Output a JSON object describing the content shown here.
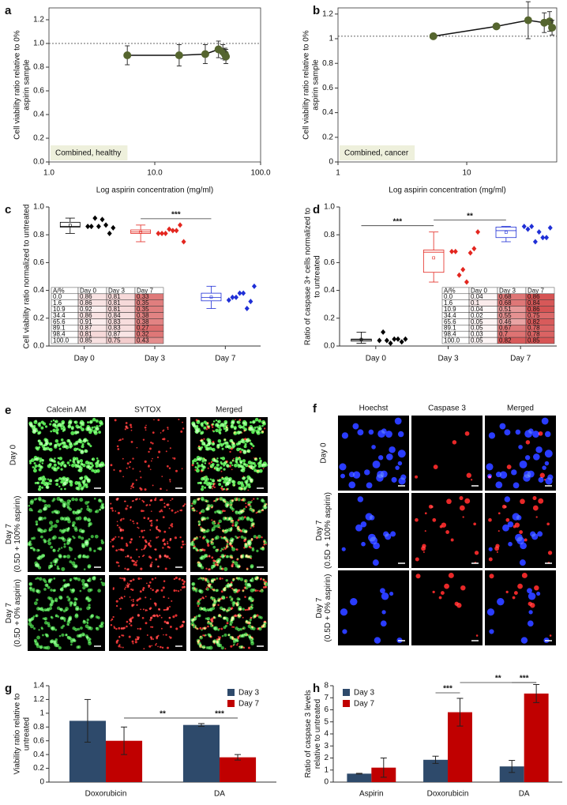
{
  "chart_data": [
    {
      "panel": "a",
      "type": "scatter",
      "xscale": "log",
      "frame": true,
      "x": [
        5.5,
        17,
        30,
        40,
        44,
        46,
        47
      ],
      "values": [
        0.9,
        0.9,
        0.91,
        0.95,
        0.93,
        0.91,
        0.89
      ],
      "errors": [
        0.08,
        0.09,
        0.08,
        0.07,
        0.06,
        0.05,
        0.06
      ],
      "color": "#55652e",
      "fit": true,
      "reference": 1,
      "xlim": [
        1,
        100
      ],
      "xticks": [
        {
          "value": 1,
          "label": "1.0"
        },
        {
          "value": 10,
          "label": "10.0"
        },
        {
          "value": 100,
          "label": "100.0"
        }
      ],
      "ylim": [
        0,
        1.3
      ],
      "yticks": [
        {
          "value": 0,
          "label": "0.0"
        },
        0.2,
        0.4,
        0.6,
        0.8,
        {
          "value": 1,
          "label": "1.0"
        },
        1.2
      ],
      "xlabel": "Log aspirin concentration (mg/ml)",
      "ylabel": [
        "Cell viability ratio relative to 0%",
        "aspirin sample"
      ],
      "annotation": "Combined, healthy"
    },
    {
      "panel": "b",
      "type": "scatter",
      "xscale": "log",
      "frame": true,
      "x": [
        5.5,
        17,
        30,
        40,
        44,
        46
      ],
      "values": [
        1.02,
        1.1,
        1.15,
        1.13,
        1.14,
        1.09
      ],
      "errors": [
        0.01,
        0.02,
        0.15,
        0.08,
        0.08,
        0.06
      ],
      "color": "#55652e",
      "fit": true,
      "reference": 1.02,
      "xlim": [
        1,
        50
      ],
      "xticks": [
        1,
        10
      ],
      "ylim": [
        0,
        1.25
      ],
      "yticks": [
        0,
        0.2,
        0.4,
        0.6,
        0.8,
        1,
        1.2
      ],
      "xlabel": "Log aspirin concentration (mg/ml)",
      "ylabel": [
        "Cell viability ratio relative to 0%",
        "aspirin sample"
      ],
      "annotation": "Combined, cancer"
    },
    {
      "panel": "c",
      "type": "box",
      "categories": [
        "Day 0",
        "Day 3",
        "Day 7"
      ],
      "colors": [
        "#000000",
        "#e3261f",
        "#1f2fd6"
      ],
      "boxes": [
        {
          "min": 0.81,
          "q1": 0.855,
          "median": 0.86,
          "q3": 0.89,
          "max": 0.92,
          "mean": 0.868
        },
        {
          "min": 0.75,
          "q1": 0.81,
          "median": 0.82,
          "q3": 0.835,
          "max": 0.87,
          "mean": 0.819
        },
        {
          "min": 0.27,
          "q1": 0.325,
          "median": 0.35,
          "q3": 0.38,
          "max": 0.43,
          "mean": 0.351
        }
      ],
      "points": [
        [
          0.86,
          0.86,
          0.92,
          0.86,
          0.91,
          0.87,
          0.81,
          0.85
        ],
        [
          0.81,
          0.81,
          0.81,
          0.84,
          0.83,
          0.83,
          0.87,
          0.75
        ],
        [
          0.33,
          0.35,
          0.35,
          0.38,
          0.38,
          0.27,
          0.32,
          0.43
        ]
      ],
      "ylim": [
        0,
        1
      ],
      "yticks": [
        {
          "value": 0,
          "label": "0.0"
        },
        0.2,
        0.4,
        0.6,
        0.8,
        {
          "value": 1,
          "label": "1.0"
        }
      ],
      "ylabel": [
        "Cell viability ratio normalized to untreated"
      ],
      "annotations": [
        {
          "text": "***",
          "from": 1,
          "to": 2
        }
      ],
      "table_corner": "bottom-left",
      "shade": "low",
      "table": {
        "header": [
          "A/%",
          "Day 0",
          "Day 3",
          "Day 7"
        ],
        "rows": [
          [
            "0.0",
            "0.86",
            "0.81",
            "0.33"
          ],
          [
            "1.6",
            "0.86",
            "0.81",
            "0.35"
          ],
          [
            "10.9",
            "0.92",
            "0.81",
            "0.35"
          ],
          [
            "34.4",
            "0.86",
            "0.84",
            "0.38"
          ],
          [
            "65.6",
            "0.91",
            "0.83",
            "0.38"
          ],
          [
            "89.1",
            "0.87",
            "0.83",
            "0.27"
          ],
          [
            "98.4",
            "0.81",
            "0.87",
            "0.32"
          ],
          [
            "100.0",
            "0.85",
            "0.75",
            "0.43"
          ]
        ]
      }
    },
    {
      "panel": "d",
      "type": "box",
      "categories": [
        "Day 0",
        "Day 3",
        "Day 7"
      ],
      "colors": [
        "#000000",
        "#e3261f",
        "#1f2fd6"
      ],
      "boxes": [
        {
          "min": 0.02,
          "q1": 0.035,
          "median": 0.045,
          "q3": 0.05,
          "max": 0.1,
          "mean": 0.048
        },
        {
          "min": 0.46,
          "q1": 0.53,
          "median": 0.675,
          "q3": 0.69,
          "max": 0.82,
          "mean": 0.634
        },
        {
          "min": 0.75,
          "q1": 0.78,
          "median": 0.83,
          "q3": 0.855,
          "max": 0.86,
          "mean": 0.818
        }
      ],
      "points": [
        [
          0.04,
          0.1,
          0.04,
          0.02,
          0.05,
          0.05,
          0.03,
          0.05
        ],
        [
          0.68,
          0.68,
          0.51,
          0.55,
          0.46,
          0.67,
          0.7,
          0.82
        ],
        [
          0.86,
          0.84,
          0.86,
          0.75,
          0.82,
          0.78,
          0.78,
          0.85
        ]
      ],
      "ylim": [
        0,
        1
      ],
      "yticks": [
        {
          "value": 0,
          "label": "0.0"
        },
        0.2,
        0.4,
        0.6,
        0.8,
        {
          "value": 1,
          "label": "1.0"
        }
      ],
      "ylabel": [
        "Ratio of caspase 3+ cells normalized to",
        "to untreated"
      ],
      "annotations": [
        {
          "text": "***",
          "from": 0,
          "to": 1
        },
        {
          "text": "**",
          "from": 1,
          "to": 2
        }
      ],
      "table_corner": "bottom-right",
      "shade": "high",
      "table": {
        "header": [
          "A/%",
          "Day 0",
          "Day 3",
          "Day 7"
        ],
        "rows": [
          [
            "0.0",
            "0.04",
            "0.68",
            "0.86"
          ],
          [
            "1.6",
            "0.1",
            "0.68",
            "0.84"
          ],
          [
            "10.9",
            "0.04",
            "0.51",
            "0.86"
          ],
          [
            "34.4",
            "0.02",
            "0.55",
            "0.75"
          ],
          [
            "65.6",
            "0.05",
            "0.46",
            "0.82"
          ],
          [
            "89.1",
            "0.05",
            "0.67",
            "0.78"
          ],
          [
            "98.4",
            "0.03",
            "0.7",
            "0.78"
          ],
          [
            "100.0",
            "0.05",
            "0.82",
            "0.85"
          ]
        ]
      }
    },
    {
      "panel": "g",
      "type": "bar",
      "categories": [
        "Doxorubicin",
        "DA"
      ],
      "series": [
        {
          "name": "Day 3",
          "color": "#2e4a6b",
          "values": [
            0.89,
            0.83
          ],
          "errors": [
            0.31,
            0.02
          ]
        },
        {
          "name": "Day 7",
          "color": "#c00000",
          "values": [
            0.6,
            0.36
          ],
          "errors": [
            0.2,
            0.04
          ]
        }
      ],
      "ylim": [
        0,
        1.4
      ],
      "yticks": [
        0,
        0.2,
        0.4,
        0.6,
        0.8,
        1,
        1.2,
        1.4
      ],
      "ylabel": [
        "Viability ratio relative to",
        "untreated"
      ],
      "legend": "top-right",
      "annotations": [
        {
          "text": "**",
          "from": [
            0,
            1
          ],
          "to": [
            1,
            0
          ]
        },
        {
          "text": "***",
          "from": [
            1,
            0
          ],
          "to": [
            1,
            1
          ]
        }
      ]
    },
    {
      "panel": "h",
      "type": "bar",
      "categories": [
        "Aspirin",
        "Doxorubicin",
        "DA"
      ],
      "series": [
        {
          "name": "Day 3",
          "color": "#2e4a6b",
          "values": [
            0.7,
            1.85,
            1.3
          ],
          "errors": [
            0.03,
            0.3,
            0.5
          ]
        },
        {
          "name": "Day 7",
          "color": "#c00000",
          "values": [
            1.2,
            5.8,
            7.35
          ],
          "errors": [
            0.8,
            1.15,
            0.75
          ]
        }
      ],
      "ylim": [
        0,
        8
      ],
      "yticks": [
        0,
        1,
        2,
        3,
        4,
        5,
        6,
        7,
        8
      ],
      "ylabel": [
        "Ratio of caspase 3 levels",
        "relative to untreated"
      ],
      "legend": "top-left",
      "annotations": [
        {
          "text": "***",
          "from": [
            1,
            0
          ],
          "to": [
            1,
            1
          ]
        },
        {
          "text": "**",
          "from": [
            1,
            1
          ],
          "to": [
            2,
            1
          ]
        },
        {
          "text": "***",
          "from": [
            2,
            0
          ],
          "to": [
            2,
            1
          ]
        }
      ]
    }
  ],
  "panels": [
    {
      "letter": "e",
      "columns": [
        "Calcein AM",
        "SYTOX",
        "Merged"
      ],
      "column_colors": [
        "#4c8a1d",
        "#d42020",
        "#111111"
      ],
      "rows": [
        [
          "Day 0"
        ],
        [
          "Day 7",
          "(0.5D + 100% aspirin)"
        ],
        [
          "Day 7",
          "(0.5D + 0% aspirin)"
        ]
      ]
    },
    {
      "letter": "f",
      "columns": [
        "Hoechst",
        "Caspase 3",
        "Merged"
      ],
      "column_colors": [
        "#2030c0",
        "#d42020",
        "#111111"
      ],
      "rows": [
        [
          "Day 0"
        ],
        [
          "Day 7",
          "(0.5D + 100% aspirin)"
        ],
        [
          "Day 7",
          "(0.5D + 0% aspirin)"
        ]
      ]
    }
  ]
}
